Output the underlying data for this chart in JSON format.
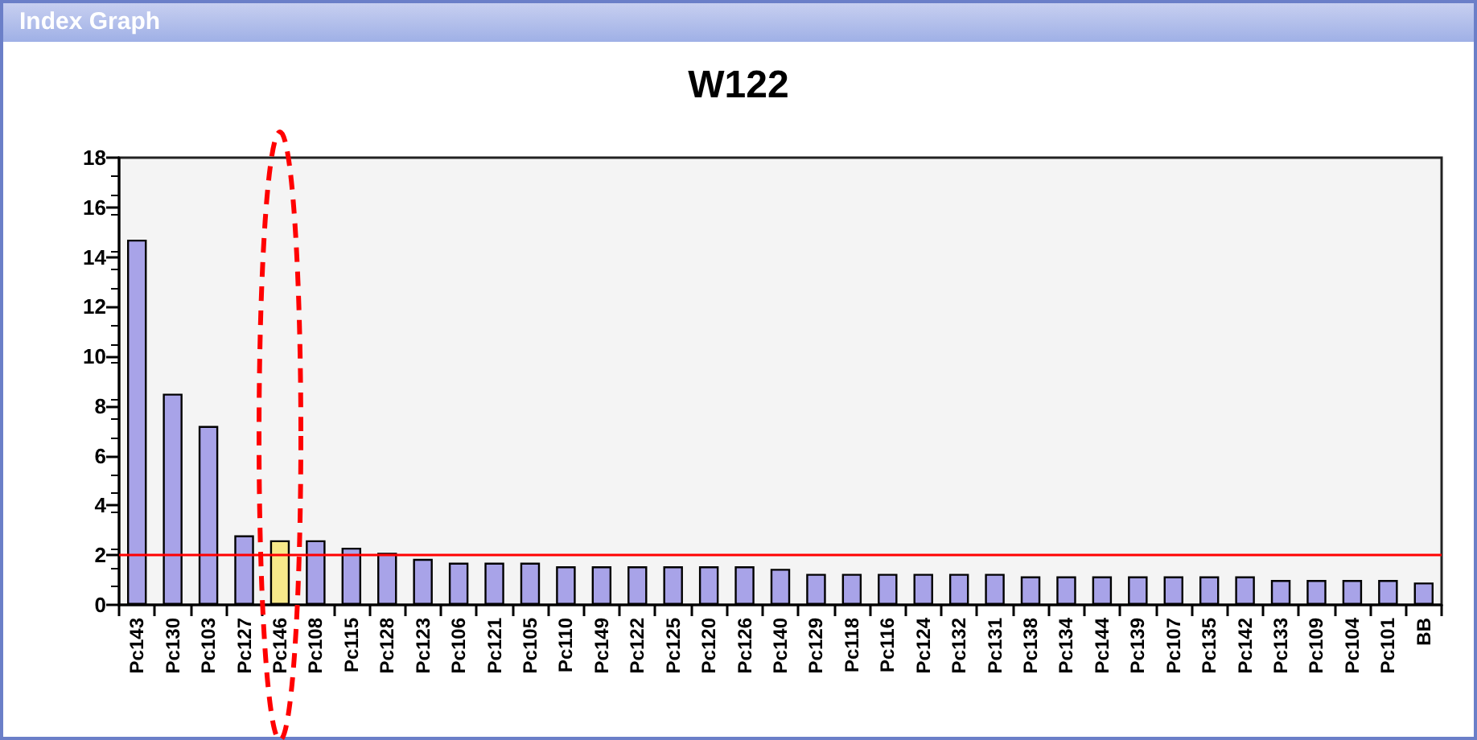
{
  "chart_data": {
    "type": "bar",
    "title": "W122",
    "annotations": [
      "Index Graph"
    ],
    "categories": [
      "Pc143",
      "Pc130",
      "Pc103",
      "Pc127",
      "Pc146",
      "Pc108",
      "Pc115",
      "Pc128",
      "Pc123",
      "Pc106",
      "Pc121",
      "Pc105",
      "Pc110",
      "Pc149",
      "Pc122",
      "Pc125",
      "Pc120",
      "Pc126",
      "Pc140",
      "Pc129",
      "Pc118",
      "Pc116",
      "Pc124",
      "Pc132",
      "Pc131",
      "Pc138",
      "Pc134",
      "Pc144",
      "Pc139",
      "Pc107",
      "Pc135",
      "Pc142",
      "Pc133",
      "Pc109",
      "Pc104",
      "Pc101",
      "BB"
    ],
    "values": [
      14.7,
      8.5,
      7.2,
      2.8,
      2.6,
      2.6,
      2.3,
      2.1,
      1.85,
      1.7,
      1.7,
      1.7,
      1.55,
      1.55,
      1.55,
      1.55,
      1.55,
      1.55,
      1.45,
      1.25,
      1.25,
      1.25,
      1.25,
      1.25,
      1.25,
      1.15,
      1.15,
      1.15,
      1.15,
      1.15,
      1.15,
      1.15,
      1.0,
      1.0,
      1.0,
      1.0,
      0.9
    ],
    "colors": [
      "#a8a3e8",
      "#a8a3e8",
      "#a8a3e8",
      "#a8a3e8",
      "#f7e98a",
      "#a8a3e8",
      "#a8a3e8",
      "#a8a3e8",
      "#a8a3e8",
      "#a8a3e8",
      "#a8a3e8",
      "#a8a3e8",
      "#a8a3e8",
      "#a8a3e8",
      "#a8a3e8",
      "#a8a3e8",
      "#a8a3e8",
      "#a8a3e8",
      "#a8a3e8",
      "#a8a3e8",
      "#a8a3e8",
      "#a8a3e8",
      "#a8a3e8",
      "#a8a3e8",
      "#a8a3e8",
      "#a8a3e8",
      "#a8a3e8",
      "#a8a3e8",
      "#a8a3e8",
      "#a8a3e8",
      "#a8a3e8",
      "#a8a3e8",
      "#a8a3e8",
      "#a8a3e8",
      "#a8a3e8",
      "#a8a3e8",
      "#a8a3e8"
    ],
    "ylim": [
      0,
      18
    ],
    "yticks": [
      0,
      2,
      4,
      6,
      8,
      10,
      12,
      14,
      16,
      18
    ],
    "grid": false,
    "ref_lines": [
      {
        "axis": "y",
        "value": 2,
        "color": "#ff0000"
      }
    ]
  }
}
